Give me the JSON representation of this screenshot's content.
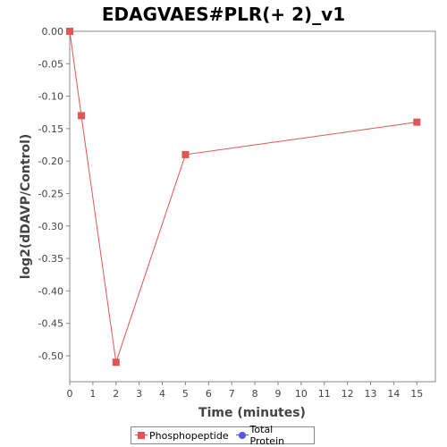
{
  "chart_data": {
    "type": "line",
    "title": "EDAGVAES#PLR(+ 2)_v1",
    "xlabel": "Time (minutes)",
    "ylabel": "log2(dDAVP/Control)",
    "xlim": [
      0,
      15.8
    ],
    "ylim": [
      -0.54,
      0.0
    ],
    "x_ticks": [
      "0",
      "1",
      "2",
      "3",
      "4",
      "5",
      "6",
      "7",
      "8",
      "9",
      "10",
      "11",
      "12",
      "13",
      "14",
      "15"
    ],
    "y_ticks": [
      "0.00",
      "-0.05",
      "-0.10",
      "-0.15",
      "-0.20",
      "-0.25",
      "-0.30",
      "-0.35",
      "-0.40",
      "-0.45",
      "-0.50"
    ],
    "grid": false,
    "legend_position": "bottom",
    "series": [
      {
        "name": "Phosphopeptide",
        "color": "#e05555",
        "marker": "square",
        "x": [
          0,
          0.5,
          2,
          5,
          15
        ],
        "y": [
          0.0,
          -0.13,
          -0.51,
          -0.19,
          -0.14
        ]
      },
      {
        "name": "Total Protein",
        "color": "#5555e0",
        "marker": "circle",
        "x": [],
        "y": []
      }
    ]
  }
}
